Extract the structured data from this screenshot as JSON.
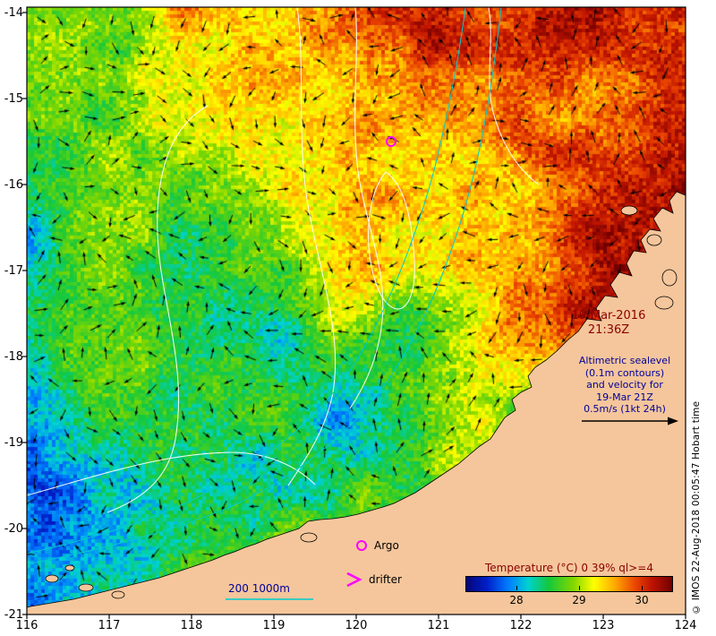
{
  "axes": {
    "x_ticks": [
      "116",
      "117",
      "118",
      "119",
      "120",
      "121",
      "122",
      "123",
      "124"
    ],
    "y_ticks": [
      "-14",
      "-15",
      "-16",
      "-17",
      "-18",
      "-19",
      "-20",
      "-21"
    ]
  },
  "overlay": {
    "date": "19-Mar-2016",
    "time": "21:36Z",
    "altimetric_lines": [
      "Altimetric sealevel",
      "(0.1m contours)",
      "and velocity for",
      "19-Mar 21Z",
      "0.5m/s (1kt 24h)"
    ],
    "argo_label": "Argo",
    "drifter_label": "drifter",
    "isobath_labels": "200  1000m",
    "copyright": "© IMOS 22-Aug-2018 00:05:47 Hobart time"
  },
  "colorbar": {
    "title": "Temperature (°C) 0 39% ql>=4",
    "tick_labels": [
      "28",
      "29",
      "30"
    ]
  },
  "colors": {
    "land": "#f5c69b",
    "annotation_navy": "#000099",
    "annotation_red": "#8b0000",
    "marker_magenta": "#ff00ff",
    "isobath_cyan": "#00cccc",
    "contour_white": "#ffffff",
    "frame_black": "#000000"
  },
  "map_extent": {
    "lon_min": 116,
    "lon_max": 124,
    "lat_min": -21,
    "lat_max": -14
  }
}
